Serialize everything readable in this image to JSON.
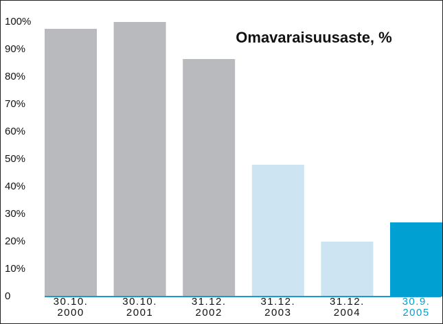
{
  "chart_data": {
    "type": "bar",
    "title": "Omavaraisuusaste, %",
    "categories": [
      "30.10.\n2000",
      "30.10.\n2001",
      "31.12.\n2002",
      "31.12.\n2003",
      "31.12.\n2004",
      "30.9.\n2005"
    ],
    "values": [
      97.5,
      100,
      86.5,
      48,
      20,
      27
    ],
    "colors": [
      "#b9babd",
      "#b9babd",
      "#b9babd",
      "#cde5f2",
      "#cde5f2",
      "#00a0d2"
    ],
    "category_colors": [
      "#111111",
      "#111111",
      "#111111",
      "#111111",
      "#111111",
      "#00a0d2"
    ],
    "axis_color": "#1a9bd0",
    "ylim": [
      0,
      100
    ],
    "yticks": [
      0,
      {
        "value": 10,
        "label": "10%"
      },
      {
        "value": 20,
        "label": "20%"
      },
      {
        "value": 30,
        "label": "30%"
      },
      {
        "value": 40,
        "label": "40%"
      },
      {
        "value": 50,
        "label": "50%"
      },
      {
        "value": 60,
        "label": "60%"
      },
      {
        "value": 70,
        "label": "70%"
      },
      {
        "value": 80,
        "label": "80%"
      },
      {
        "value": 90,
        "label": "90%"
      },
      {
        "value": 100,
        "label": "100%"
      }
    ],
    "grid": false
  }
}
